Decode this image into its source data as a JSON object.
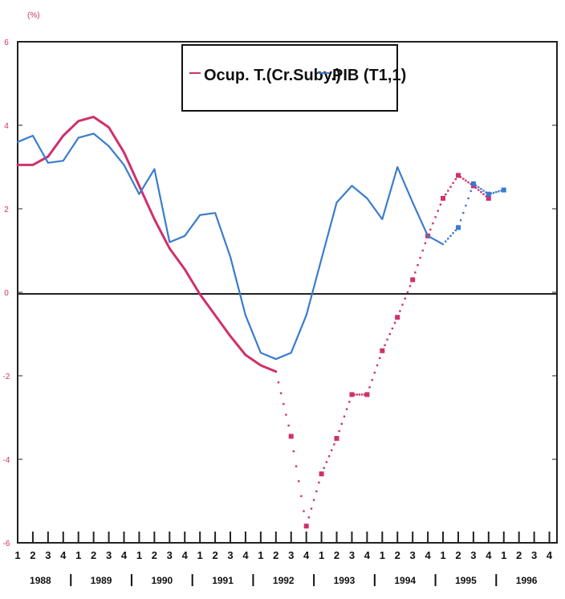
{
  "chart_data": {
    "type": "line",
    "unit_label": "(%)",
    "y_left": {
      "range": [
        -6,
        6
      ],
      "ticks": [
        "-6",
        "-4",
        "-2",
        "0",
        "2",
        "4",
        "6"
      ],
      "color": "#d0306c"
    },
    "x": {
      "quarter_labels": [
        "1",
        "2",
        "3",
        "4",
        "1",
        "2",
        "3",
        "4",
        "1",
        "2",
        "3",
        "4",
        "1",
        "2",
        "3",
        "4",
        "1",
        "2",
        "3",
        "4",
        "1",
        "2",
        "3",
        "4",
        "1",
        "2",
        "3",
        "4",
        "1",
        "2",
        "3",
        "4",
        "1",
        "2",
        "3",
        "4"
      ],
      "year_labels": [
        "1988",
        "1989",
        "1990",
        "1991",
        "1992",
        "1993",
        "1994",
        "1995",
        "1996"
      ]
    },
    "legend": [
      "Ocup. T.(Cr.Suby.)",
      "PIB (T1,1)"
    ],
    "series": [
      {
        "name": "Ocup. T.(Cr.Suby.)",
        "color": "#d0306c",
        "values": [
          3.05,
          3.05,
          3.25,
          3.75,
          4.1,
          4.2,
          3.95,
          3.35,
          2.55,
          1.75,
          1.05,
          0.55,
          -0.05,
          -0.55,
          -1.05,
          -1.5,
          -1.75,
          -1.9,
          -3.45,
          -5.6,
          -4.35,
          -3.5,
          -2.45,
          -2.45,
          -1.4,
          -0.6,
          0.3,
          1.35,
          2.25,
          2.8,
          2.55,
          2.25
        ],
        "forecast_from_index": 18
      },
      {
        "name": "PIB (T1,1)",
        "color": "#3a7ccc",
        "values": [
          3.6,
          3.75,
          3.1,
          3.15,
          3.7,
          3.8,
          3.5,
          3.05,
          2.35,
          2.95,
          1.2,
          1.35,
          1.85,
          1.9,
          0.85,
          -0.55,
          -1.45,
          -1.6,
          -1.45,
          -0.55,
          0.8,
          2.15,
          2.55,
          2.25,
          1.75,
          3.0,
          2.15,
          1.35,
          1.15,
          1.55,
          2.6,
          2.35,
          2.45
        ],
        "forecast_from_index": 29
      }
    ]
  }
}
